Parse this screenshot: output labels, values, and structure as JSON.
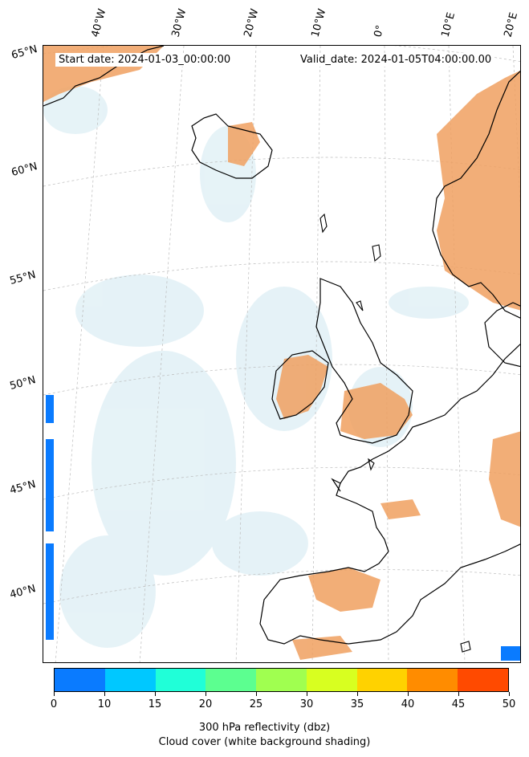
{
  "map": {
    "start_date_label": "Start date: 2024-01-03_00:00:00",
    "valid_date_label": "Valid_date: 2024-01-05T04:00:00.00",
    "longitude_labels": [
      "40°W",
      "30°W",
      "20°W",
      "10°W",
      "0°",
      "10°E",
      "20°E"
    ],
    "latitude_labels": [
      "65°N",
      "60°N",
      "55°N",
      "50°N",
      "45°N",
      "40°N"
    ],
    "colors": {
      "land_fill": "#f0a060",
      "cloud_shading": "#d8ecf3",
      "coastline": "#000000",
      "gridline": "#bbbbbb"
    }
  },
  "colorbar": {
    "ticks": [
      "0",
      "10",
      "15",
      "20",
      "25",
      "30",
      "35",
      "40",
      "45",
      "50"
    ],
    "colors": [
      "#0a7bff",
      "#00c8ff",
      "#20ffd8",
      "#5cff90",
      "#a0ff50",
      "#d8ff20",
      "#ffd200",
      "#ff8c00",
      "#ff4a00"
    ],
    "label_line1": "300 hPa reflectivity (dbz)",
    "label_line2": "Cloud cover (white background shading)"
  }
}
